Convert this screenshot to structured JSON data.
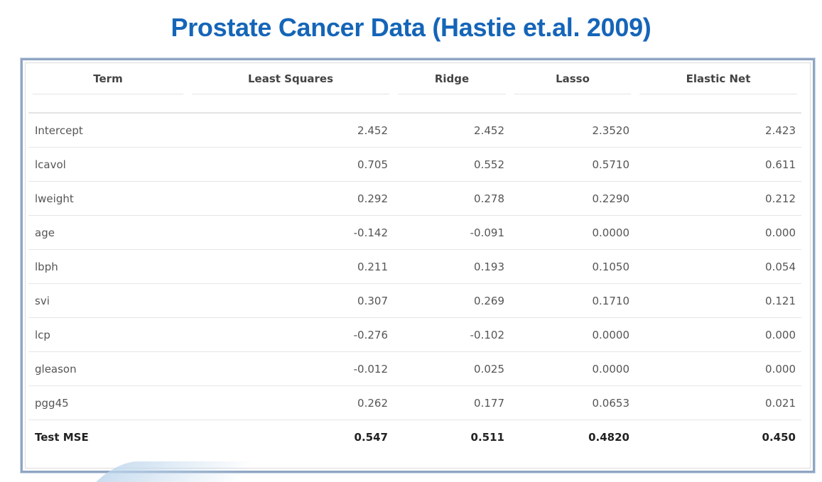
{
  "title": "Prostate Cancer Data (Hastie et.al. 2009)",
  "chart_data": {
    "type": "table",
    "columns": [
      "Term",
      "Least Squares",
      "Ridge",
      "Lasso",
      "Elastic Net"
    ],
    "rows": [
      {
        "term": "Intercept",
        "values": [
          "2.452",
          "2.452",
          "2.3520",
          "2.423"
        ]
      },
      {
        "term": "lcavol",
        "values": [
          "0.705",
          "0.552",
          "0.5710",
          "0.611"
        ]
      },
      {
        "term": "lweight",
        "values": [
          "0.292",
          "0.278",
          "0.2290",
          "0.212"
        ]
      },
      {
        "term": "age",
        "values": [
          "-0.142",
          "-0.091",
          "0.0000",
          "0.000"
        ]
      },
      {
        "term": "lbph",
        "values": [
          "0.211",
          "0.193",
          "0.1050",
          "0.054"
        ]
      },
      {
        "term": "svi",
        "values": [
          "0.307",
          "0.269",
          "0.1710",
          "0.121"
        ]
      },
      {
        "term": "lcp",
        "values": [
          "-0.276",
          "-0.102",
          "0.0000",
          "0.000"
        ]
      },
      {
        "term": "gleason",
        "values": [
          "-0.012",
          "0.025",
          "0.0000",
          "0.000"
        ]
      },
      {
        "term": "pgg45",
        "values": [
          "0.262",
          "0.177",
          "0.0653",
          "0.021"
        ]
      },
      {
        "term": "Test MSE",
        "values": [
          "0.547",
          "0.511",
          "0.4820",
          "0.450"
        ],
        "bold": true
      }
    ]
  },
  "colors": {
    "title": "#1565b8",
    "frame": "#8fa6c2"
  }
}
